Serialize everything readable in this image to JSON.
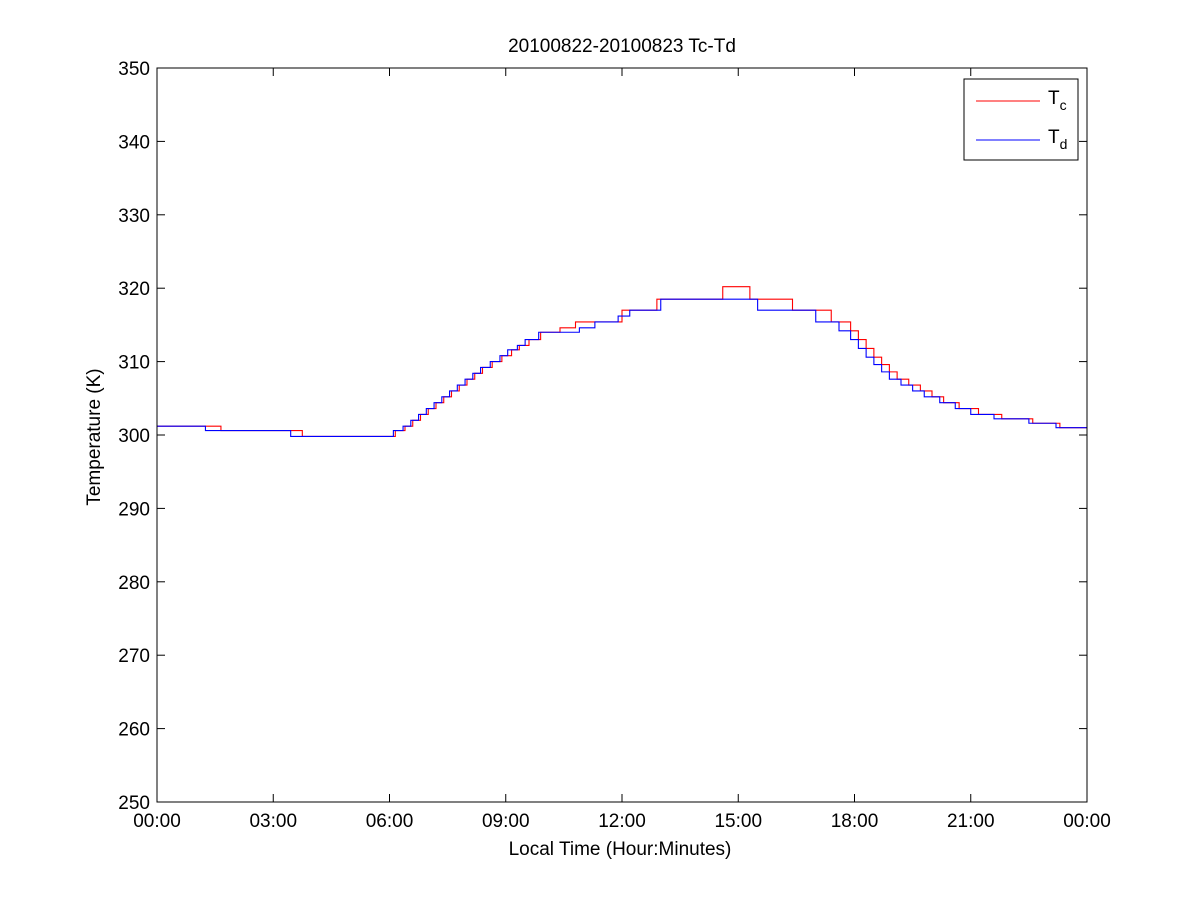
{
  "figure": {
    "background": "#ffffff",
    "axes_color": "#000000"
  },
  "chart_data": {
    "type": "line",
    "title": "20100822-20100823 Tc-Td",
    "xlabel": "Local Time (Hour:Minutes)",
    "ylabel": "Temperature (K)",
    "xlim": [
      0,
      24
    ],
    "ylim": [
      250,
      350
    ],
    "x_unit": "hours",
    "xticks": [
      0,
      3,
      6,
      9,
      12,
      15,
      18,
      21,
      24
    ],
    "xtick_labels": [
      "00:00",
      "03:00",
      "06:00",
      "09:00",
      "12:00",
      "15:00",
      "18:00",
      "21:00",
      "00:00"
    ],
    "yticks": [
      250,
      260,
      270,
      280,
      290,
      300,
      310,
      320,
      330,
      340,
      350
    ],
    "ytick_labels": [
      "250",
      "260",
      "270",
      "280",
      "290",
      "300",
      "310",
      "320",
      "330",
      "340",
      "350"
    ],
    "grid": false,
    "legend": {
      "position": "top-right",
      "entries": [
        {
          "main": "T",
          "sub": "c",
          "color": "#ff0000"
        },
        {
          "main": "T",
          "sub": "d",
          "color": "#0000ff"
        }
      ]
    },
    "series": [
      {
        "color": "#ff0000",
        "step": true,
        "points": [
          [
            0,
            301.2
          ],
          [
            1.65,
            300.6
          ],
          [
            3.75,
            299.8
          ],
          [
            6.15,
            300.6
          ],
          [
            6.4,
            301.2
          ],
          [
            6.6,
            302.0
          ],
          [
            6.8,
            302.8
          ],
          [
            7.0,
            303.6
          ],
          [
            7.2,
            304.4
          ],
          [
            7.4,
            305.2
          ],
          [
            7.6,
            306.0
          ],
          [
            7.8,
            306.8
          ],
          [
            8.0,
            307.6
          ],
          [
            8.2,
            308.4
          ],
          [
            8.4,
            309.2
          ],
          [
            8.65,
            310.0
          ],
          [
            8.9,
            310.8
          ],
          [
            9.15,
            311.6
          ],
          [
            9.35,
            312.2
          ],
          [
            9.6,
            313.0
          ],
          [
            9.9,
            314.0
          ],
          [
            10.4,
            314.6
          ],
          [
            10.8,
            315.4
          ],
          [
            11.5,
            315.4
          ],
          [
            12.0,
            317.0
          ],
          [
            12.9,
            318.5
          ],
          [
            14.6,
            320.2
          ],
          [
            15.3,
            318.5
          ],
          [
            16.4,
            317.0
          ],
          [
            17.4,
            315.4
          ],
          [
            17.9,
            314.2
          ],
          [
            18.1,
            313.0
          ],
          [
            18.3,
            311.8
          ],
          [
            18.5,
            310.6
          ],
          [
            18.7,
            309.6
          ],
          [
            18.9,
            308.6
          ],
          [
            19.1,
            307.6
          ],
          [
            19.4,
            306.8
          ],
          [
            19.7,
            306.0
          ],
          [
            20.0,
            305.2
          ],
          [
            20.3,
            304.4
          ],
          [
            20.7,
            303.6
          ],
          [
            21.2,
            302.8
          ],
          [
            21.8,
            302.2
          ],
          [
            22.6,
            301.6
          ],
          [
            23.3,
            301.0
          ],
          [
            24,
            301.0
          ]
        ]
      },
      {
        "color": "#0000ff",
        "step": true,
        "points": [
          [
            0,
            301.2
          ],
          [
            1.25,
            300.6
          ],
          [
            3.45,
            299.8
          ],
          [
            6.1,
            300.6
          ],
          [
            6.35,
            301.2
          ],
          [
            6.55,
            302.0
          ],
          [
            6.75,
            302.8
          ],
          [
            6.95,
            303.6
          ],
          [
            7.15,
            304.4
          ],
          [
            7.35,
            305.2
          ],
          [
            7.55,
            306.0
          ],
          [
            7.75,
            306.8
          ],
          [
            7.95,
            307.6
          ],
          [
            8.15,
            308.4
          ],
          [
            8.35,
            309.2
          ],
          [
            8.6,
            310.0
          ],
          [
            8.85,
            310.8
          ],
          [
            9.05,
            311.6
          ],
          [
            9.3,
            312.2
          ],
          [
            9.5,
            313.0
          ],
          [
            9.85,
            314.0
          ],
          [
            10.3,
            314.0
          ],
          [
            10.9,
            314.6
          ],
          [
            11.3,
            315.4
          ],
          [
            11.9,
            316.2
          ],
          [
            12.2,
            317.0
          ],
          [
            13.0,
            318.5
          ],
          [
            15.3,
            318.5
          ],
          [
            15.5,
            317.0
          ],
          [
            17.0,
            315.4
          ],
          [
            17.6,
            314.2
          ],
          [
            17.9,
            313.0
          ],
          [
            18.1,
            311.8
          ],
          [
            18.3,
            310.6
          ],
          [
            18.5,
            309.6
          ],
          [
            18.7,
            308.6
          ],
          [
            18.9,
            307.6
          ],
          [
            19.2,
            306.8
          ],
          [
            19.5,
            306.0
          ],
          [
            19.8,
            305.2
          ],
          [
            20.2,
            304.4
          ],
          [
            20.6,
            303.6
          ],
          [
            21.0,
            302.8
          ],
          [
            21.6,
            302.2
          ],
          [
            22.5,
            301.6
          ],
          [
            23.2,
            301.0
          ],
          [
            24,
            301.0
          ]
        ]
      }
    ]
  }
}
